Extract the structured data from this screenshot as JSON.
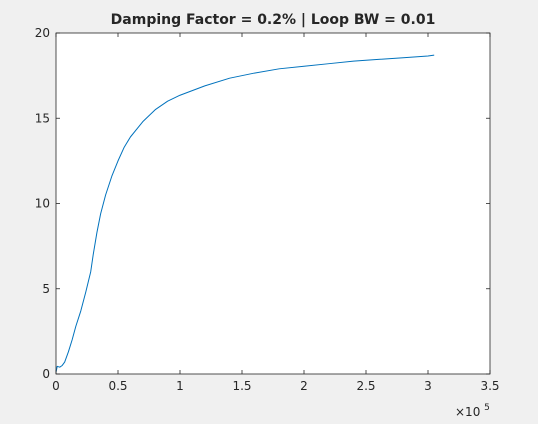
{
  "figure": {
    "background": "#f0f0f0",
    "axes_background": "#ffffff",
    "line_color": "#0072bd",
    "axis_color": "#262626"
  },
  "chart_data": {
    "type": "line",
    "title": "Damping Factor = 0.2% | Loop BW = 0.01",
    "xlabel": "",
    "ylabel": "",
    "x_exponent_label": {
      "base": "×10",
      "exponent": "5"
    },
    "xlim": [
      0,
      3.5
    ],
    "ylim": [
      0,
      20
    ],
    "x_unit_scale": 100000,
    "x_ticks": [
      0,
      0.5,
      1,
      1.5,
      2,
      2.5,
      3,
      3.5
    ],
    "x_tick_labels": [
      "0",
      "0.5",
      "1",
      "1.5",
      "2",
      "2.5",
      "3",
      "3.5"
    ],
    "y_ticks": [
      0,
      5,
      10,
      15,
      20
    ],
    "y_tick_labels": [
      "0",
      "5",
      "10",
      "15",
      "20"
    ],
    "grid": false,
    "series": [
      {
        "color": "#0072bd",
        "x": [
          0,
          0.01,
          0.03,
          0.05,
          0.07,
          0.1,
          0.13,
          0.16,
          0.2,
          0.24,
          0.28,
          0.3,
          0.33,
          0.36,
          0.4,
          0.45,
          0.5,
          0.55,
          0.6,
          0.7,
          0.8,
          0.9,
          1.0,
          1.2,
          1.4,
          1.6,
          1.8,
          2.0,
          2.2,
          2.4,
          2.6,
          2.8,
          3.0,
          3.05
        ],
        "y": [
          0.1,
          0.45,
          0.4,
          0.5,
          0.7,
          1.3,
          2.0,
          2.8,
          3.7,
          4.8,
          6.0,
          7.0,
          8.3,
          9.4,
          10.5,
          11.6,
          12.5,
          13.3,
          13.9,
          14.8,
          15.5,
          16.0,
          16.35,
          16.9,
          17.35,
          17.65,
          17.9,
          18.05,
          18.2,
          18.35,
          18.45,
          18.55,
          18.65,
          18.7
        ]
      }
    ]
  }
}
